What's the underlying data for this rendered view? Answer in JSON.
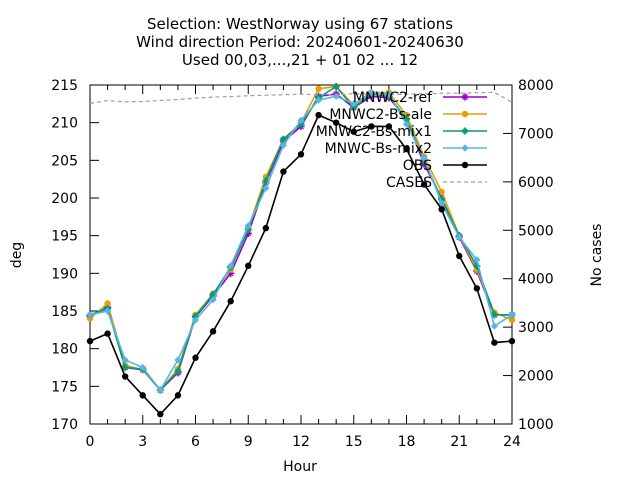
{
  "chart_data": {
    "type": "line",
    "title": [
      "Selection: WestNorway using    67 stations",
      "Wind direction   Period: 20240601-20240630",
      "Used 00,03,...,21 + 01 02 ... 12"
    ],
    "xlabel": "Hour",
    "ylabel": "deg",
    "y2label": "No cases",
    "xlim": [
      0,
      24
    ],
    "ylim": [
      170,
      215
    ],
    "y2lim": [
      1000,
      8000
    ],
    "xticks": [
      0,
      3,
      6,
      9,
      12,
      15,
      18,
      21,
      24
    ],
    "yticks": [
      170,
      175,
      180,
      185,
      190,
      195,
      200,
      205,
      210,
      215
    ],
    "y2ticks": [
      1000,
      2000,
      3000,
      4000,
      5000,
      6000,
      7000,
      8000
    ],
    "legend_position": "top-right",
    "grid": false,
    "x": [
      0,
      1,
      2,
      3,
      4,
      5,
      6,
      7,
      8,
      9,
      10,
      11,
      12,
      13,
      14,
      15,
      16,
      17,
      18,
      19,
      20,
      21,
      22,
      23,
      24
    ],
    "series": [
      {
        "name": "MNWC2-ref",
        "color": "#9400d3",
        "marker": "plus",
        "values": [
          184.3,
          185.5,
          177.5,
          177.2,
          174.5,
          176.8,
          184.2,
          187.0,
          190.0,
          195.3,
          202.0,
          207.5,
          209.5,
          213.5,
          213.8,
          212.0,
          213.5,
          213.3,
          210.5,
          204.5,
          200.0,
          194.8,
          190.3,
          184.5,
          184.5
        ]
      },
      {
        "name": "MNWC2-Bs-ale",
        "color": "#e69f00",
        "marker": "circle",
        "values": [
          184.0,
          186.0,
          177.8,
          177.2,
          174.5,
          177.3,
          184.5,
          187.3,
          190.5,
          196.0,
          202.8,
          207.8,
          210.0,
          214.5,
          214.8,
          212.3,
          214.0,
          214.0,
          211.0,
          205.5,
          200.8,
          195.0,
          190.5,
          184.8,
          183.8
        ]
      },
      {
        "name": "MNWC2-Bs-mix1",
        "color": "#009e73",
        "marker": "star",
        "values": [
          184.5,
          185.3,
          177.5,
          177.3,
          174.5,
          177.0,
          184.3,
          187.2,
          190.8,
          195.8,
          202.3,
          207.8,
          209.8,
          213.3,
          214.8,
          212.0,
          213.8,
          213.5,
          210.5,
          205.0,
          199.8,
          195.0,
          191.0,
          184.5,
          184.5
        ]
      },
      {
        "name": "MNWC-Bs-mix2",
        "color": "#56b4e9",
        "marker": "diamond",
        "values": [
          184.5,
          185.0,
          178.5,
          177.5,
          174.5,
          178.5,
          183.8,
          186.5,
          191.0,
          196.3,
          201.3,
          207.0,
          210.3,
          213.0,
          213.5,
          212.5,
          214.0,
          213.8,
          209.8,
          205.3,
          199.3,
          194.8,
          191.8,
          183.0,
          184.5
        ]
      },
      {
        "name": "OBS",
        "color": "#000000",
        "marker": "circle",
        "values": [
          181.0,
          182.0,
          176.3,
          173.8,
          171.3,
          173.8,
          178.8,
          182.3,
          186.3,
          191.0,
          196.0,
          203.5,
          205.8,
          211.0,
          210.0,
          208.8,
          209.5,
          209.5,
          206.5,
          201.8,
          198.5,
          192.3,
          188.0,
          180.8,
          181.0
        ]
      },
      {
        "name": "CASES",
        "color": "#a0a0a0",
        "axis": "y2",
        "values": [
          7620,
          7680,
          7650,
          7660,
          7680,
          7700,
          7730,
          7750,
          7760,
          7780,
          7790,
          7800,
          7810,
          7800,
          7800,
          7820,
          7810,
          7800,
          7810,
          7820,
          7830,
          7830,
          7840,
          7850,
          7640
        ]
      }
    ]
  }
}
